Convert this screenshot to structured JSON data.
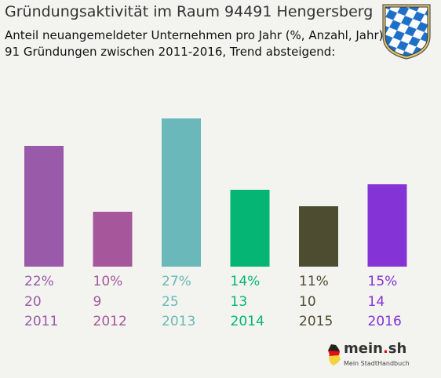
{
  "header": {
    "title": "Gründungsaktivität im Raum 94491 Hengersberg",
    "subtitle_line1": "Anteil neuangemeldeter Unternehmen pro Jahr (%, Anzahl, Jahr)",
    "subtitle_line2": "91 Gründungen zwischen 2011-2016, Trend absteigend:"
  },
  "crest_icon": "bavarian-lozenges-crest-icon",
  "chart_data": {
    "type": "bar",
    "title": "Gründungsaktivität im Raum 94491 Hengersberg",
    "subtitle": "Anteil neuangemeldeter Unternehmen pro Jahr (%, Anzahl, Jahr)",
    "categories": [
      "2011",
      "2012",
      "2013",
      "2014",
      "2015",
      "2016"
    ],
    "values": [
      22,
      10,
      27,
      14,
      11,
      15
    ],
    "percent_labels": [
      "22%",
      "10%",
      "27%",
      "14%",
      "11%",
      "15%"
    ],
    "counts": [
      "20",
      "9",
      "25",
      "13",
      "10",
      "14"
    ],
    "colors": [
      "#9a5aaa",
      "#a6579b",
      "#6ab8b9",
      "#05b573",
      "#4e4c30",
      "#8333d6"
    ],
    "unit": "%",
    "grid": false
  },
  "logo": {
    "brand_prefix": "mein",
    "brand_dot": ".",
    "brand_suffix": "sh",
    "tagline": "Mein StadtHandbuch",
    "map_icon": "germany-map-icon"
  }
}
